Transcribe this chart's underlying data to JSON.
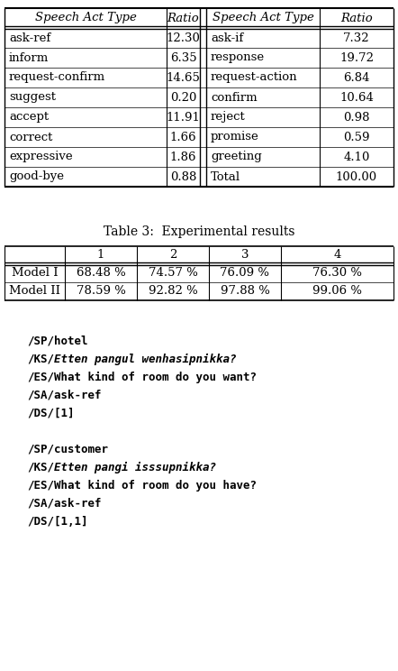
{
  "table1_headers": [
    "Speech Act Type",
    "Ratio",
    "Speech Act Type",
    "Ratio"
  ],
  "table1_rows": [
    [
      "ask-ref",
      "12.30",
      "ask-if",
      "7.32"
    ],
    [
      "inform",
      "6.35",
      "response",
      "19.72"
    ],
    [
      "request-confirm",
      "14.65",
      "request-action",
      "6.84"
    ],
    [
      "suggest",
      "0.20",
      "confirm",
      "10.64"
    ],
    [
      "accept",
      "11.91",
      "reject",
      "0.98"
    ],
    [
      "correct",
      "1.66",
      "promise",
      "0.59"
    ],
    [
      "expressive",
      "1.86",
      "greeting",
      "4.10"
    ],
    [
      "good-bye",
      "0.88",
      "Total",
      "100.00"
    ]
  ],
  "table2_title": "Table 3:  Experimental results",
  "table2_headers": [
    "",
    "1",
    "2",
    "3",
    "4"
  ],
  "table2_rows": [
    [
      "Model I",
      "68.48 %",
      "74.57 %",
      "76.09 %",
      "76.30 %"
    ],
    [
      "Model II",
      "78.59 %",
      "92.82 %",
      "97.88 %",
      "99.06 %"
    ]
  ],
  "code_lines": [
    {
      "text": "/SP/hotel",
      "style": "bold_mono"
    },
    {
      "tag": "/KS/",
      "rest": "Etten pangul wenhasipnikka?",
      "style": "ks_line"
    },
    {
      "tag": "/ES/",
      "rest": "What kind of room do you want?",
      "style": "es_line"
    },
    {
      "text": "/SA/ask-ref",
      "style": "bold_mono"
    },
    {
      "text": "/DS/[1]",
      "style": "bold_mono"
    },
    {
      "text": "",
      "style": "blank"
    },
    {
      "text": "/SP/customer",
      "style": "bold_mono"
    },
    {
      "tag": "/KS/",
      "rest": "Etten pangi isssupnikka?",
      "style": "ks_line"
    },
    {
      "tag": "/ES/",
      "rest": "What kind of room do you have?",
      "style": "es_line"
    },
    {
      "text": "/SA/ask-ref",
      "style": "bold_mono"
    },
    {
      "text": "/DS/[1,1]",
      "style": "bold_mono"
    }
  ],
  "bg_color": "#ffffff",
  "text_color": "#000000"
}
